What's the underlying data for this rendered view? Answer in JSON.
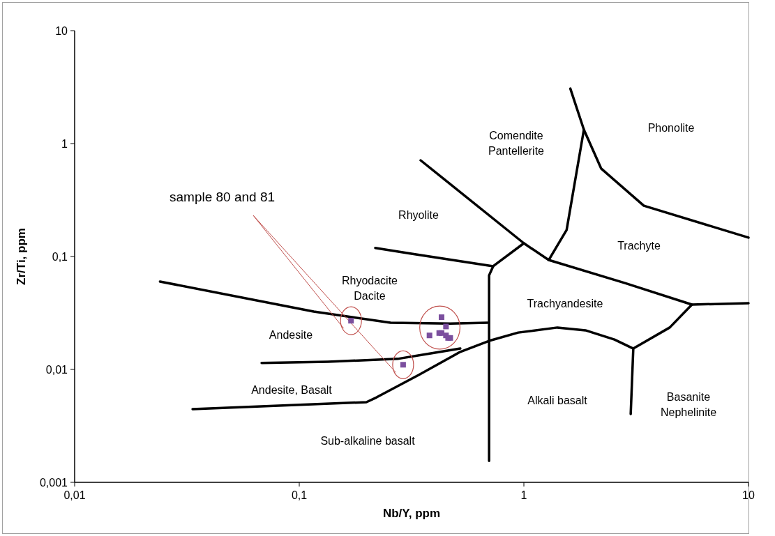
{
  "chart_data": {
    "type": "scatter",
    "xlabel": "Nb/Y, ppm",
    "ylabel": "Zr/Ti, ppm",
    "log": "xy",
    "grid": false,
    "xlim": [
      0.01,
      10
    ],
    "ylim": [
      0.001,
      10
    ],
    "xticks": [
      {
        "value": 0.01,
        "label": "0,01"
      },
      {
        "value": 0.1,
        "label": "0,1"
      },
      1,
      10
    ],
    "yticks": [
      {
        "value": 0.001,
        "label": "0,001"
      },
      {
        "value": 0.01,
        "label": "0,01"
      },
      {
        "value": 0.1,
        "label": "0,1"
      },
      1,
      10
    ],
    "series": [
      {
        "type": "scatter",
        "marker": "square",
        "color": "#7b4f9e",
        "x": [
          0.17,
          0.29,
          0.43,
          0.45,
          0.38,
          0.42,
          0.43,
          0.45,
          0.47,
          0.46
        ],
        "values": [
          0.027,
          0.011,
          0.029,
          0.024,
          0.02,
          0.021,
          0.021,
          0.02,
          0.019,
          0.019
        ]
      },
      {
        "type": "line",
        "color": "#000000",
        "x": [
          0.024,
          0.116,
          0.255,
          0.469,
          0.69
        ],
        "values": [
          0.06,
          0.0325,
          0.0259,
          0.0255,
          0.0259
        ]
      },
      {
        "type": "line",
        "color": "#000000",
        "x": [
          0.068,
          0.134,
          0.274,
          0.521
        ],
        "values": [
          0.0114,
          0.0117,
          0.0124,
          0.0153
        ]
      },
      {
        "type": "line",
        "color": "#000000",
        "x": [
          0.0335,
          0.199,
          0.221,
          0.34,
          0.521,
          0.7,
          0.944,
          1.41,
          1.88,
          2.53,
          3.07,
          4.46,
          5.6
        ],
        "values": [
          0.00445,
          0.00513,
          0.00566,
          0.00893,
          0.0143,
          0.0179,
          0.0212,
          0.0235,
          0.0222,
          0.0184,
          0.0153,
          0.0235,
          0.0375
        ]
      },
      {
        "type": "line",
        "color": "#000000",
        "x": [
          3.07,
          2.99
        ],
        "values": [
          0.0153,
          0.00403
        ]
      },
      {
        "type": "line",
        "color": "#000000",
        "x": [
          0.7,
          0.7,
          0.73,
          1.0
        ],
        "values": [
          0.00155,
          0.068,
          0.082,
          0.131
        ]
      },
      {
        "type": "line",
        "color": "#000000",
        "x": [
          0.218,
          0.316,
          0.73
        ],
        "values": [
          0.119,
          0.106,
          0.082
        ]
      },
      {
        "type": "line",
        "color": "#000000",
        "x": [
          0.347,
          1.0,
          1.29,
          2.82,
          5.6,
          10
        ],
        "values": [
          0.711,
          0.131,
          0.0931,
          0.0582,
          0.0375,
          0.0386
        ]
      },
      {
        "type": "line",
        "color": "#000000",
        "x": [
          1.61,
          1.85,
          1.55,
          1.29
        ],
        "values": [
          3.07,
          1.33,
          0.172,
          0.0931
        ]
      },
      {
        "type": "line",
        "color": "#000000",
        "x": [
          1.85,
          2.21,
          3.42,
          10
        ],
        "values": [
          1.33,
          0.6,
          0.282,
          0.147
        ]
      }
    ],
    "annotations": [
      "sample 80 and 81",
      "Phonolite",
      "Comendite\nPantellerite",
      "Rhyolite",
      "Trachyte",
      "Rhyodacite\nDacite",
      "Trachyandesite",
      "Andesite",
      "Basanite\nNephelinite",
      "Andesite, Basalt",
      "Alkali basalt",
      "Sub-alkaline basalt"
    ]
  }
}
